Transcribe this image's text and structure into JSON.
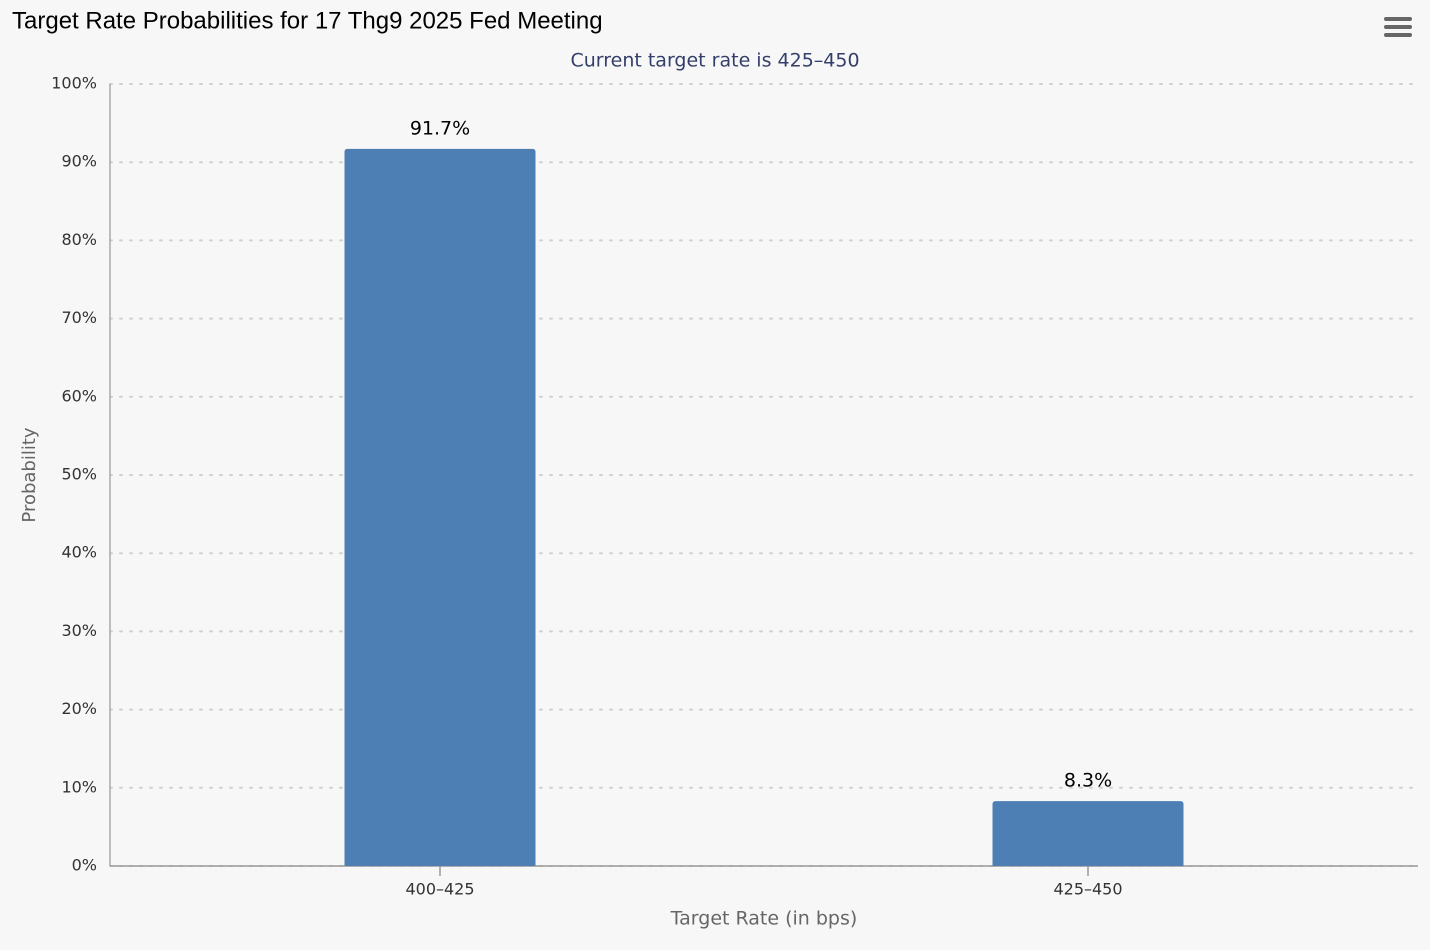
{
  "chart_data": {
    "type": "bar",
    "title": "Target Rate Probabilities for 17 Thg9 2025 Fed Meeting",
    "subtitle": "Current target rate is 425–450",
    "x_label": "Target Rate (in bps)",
    "y_label": "Probability",
    "categories": [
      "400–425",
      "425–450"
    ],
    "values": [
      91.7,
      8.3
    ],
    "value_labels": [
      "91.7%",
      "8.3%"
    ],
    "color": "#4e7fb4",
    "ylim": [
      0,
      100
    ],
    "yticks": [
      {
        "value": 0,
        "label": "0%"
      },
      {
        "value": 10,
        "label": "10%"
      },
      {
        "value": 20,
        "label": "20%"
      },
      {
        "value": 30,
        "label": "30%"
      },
      {
        "value": 40,
        "label": "40%"
      },
      {
        "value": 50,
        "label": "50%"
      },
      {
        "value": 60,
        "label": "60%"
      },
      {
        "value": 70,
        "label": "70%"
      },
      {
        "value": 80,
        "label": "80%"
      },
      {
        "value": 90,
        "label": "90%"
      },
      {
        "value": 100,
        "label": "100%"
      }
    ],
    "grid": true
  }
}
